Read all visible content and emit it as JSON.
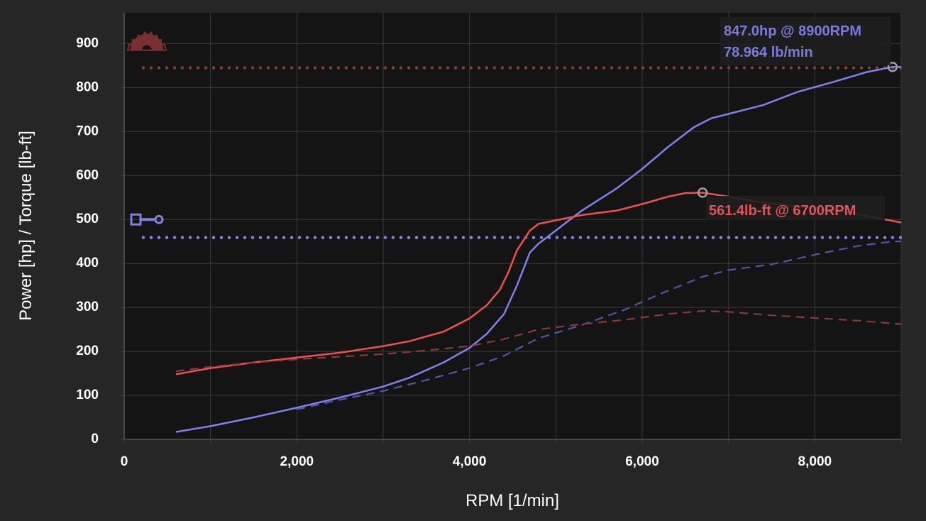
{
  "chart_data": {
    "type": "line",
    "xlabel": "RPM [1/min]",
    "ylabel": "Power [hp] / Torque [lb-ft]",
    "xlim": [
      0,
      9000
    ],
    "ylim": [
      0,
      970
    ],
    "x_ticks": [
      {
        "value": 0,
        "label": "0"
      },
      {
        "value": 2000,
        "label": "2,000"
      },
      {
        "value": 4000,
        "label": "4,000"
      },
      {
        "value": 6000,
        "label": "6,000"
      },
      {
        "value": 8000,
        "label": "8,000"
      }
    ],
    "y_ticks": [
      {
        "value": 0,
        "label": "0"
      },
      {
        "value": 100,
        "label": "100"
      },
      {
        "value": 200,
        "label": "200"
      },
      {
        "value": 300,
        "label": "300"
      },
      {
        "value": 400,
        "label": "400"
      },
      {
        "value": 500,
        "label": "500"
      },
      {
        "value": 600,
        "label": "600"
      },
      {
        "value": 700,
        "label": "700"
      },
      {
        "value": 800,
        "label": "800"
      },
      {
        "value": 900,
        "label": "900"
      }
    ],
    "grid": true,
    "colors": {
      "power": "#8080f0",
      "torque": "#f05050",
      "power_dim": "#5555a8",
      "torque_dim": "#8a3a3a",
      "power_label": "#7a7adf",
      "torque_label": "#e05555"
    },
    "series": [
      {
        "style": "solid",
        "color_key": "power",
        "points": [
          [
            600,
            17
          ],
          [
            1000,
            30
          ],
          [
            1500,
            50
          ],
          [
            2000,
            72
          ],
          [
            2500,
            95
          ],
          [
            3000,
            120
          ],
          [
            3300,
            140
          ],
          [
            3700,
            175
          ],
          [
            4000,
            208
          ],
          [
            4200,
            240
          ],
          [
            4400,
            285
          ],
          [
            4550,
            350
          ],
          [
            4700,
            425
          ],
          [
            4800,
            445
          ],
          [
            5000,
            475
          ],
          [
            5300,
            520
          ],
          [
            5700,
            570
          ],
          [
            6000,
            615
          ],
          [
            6300,
            665
          ],
          [
            6600,
            710
          ],
          [
            6800,
            730
          ],
          [
            7000,
            740
          ],
          [
            7400,
            760
          ],
          [
            7800,
            790
          ],
          [
            8200,
            812
          ],
          [
            8600,
            835
          ],
          [
            8900,
            847
          ],
          [
            9000,
            847
          ]
        ]
      },
      {
        "style": "solid",
        "color_key": "torque",
        "points": [
          [
            600,
            148
          ],
          [
            1000,
            162
          ],
          [
            1500,
            175
          ],
          [
            2000,
            186
          ],
          [
            2500,
            197
          ],
          [
            3000,
            212
          ],
          [
            3300,
            223
          ],
          [
            3700,
            245
          ],
          [
            4000,
            275
          ],
          [
            4200,
            305
          ],
          [
            4350,
            340
          ],
          [
            4450,
            380
          ],
          [
            4550,
            430
          ],
          [
            4700,
            475
          ],
          [
            4800,
            490
          ],
          [
            5000,
            498
          ],
          [
            5300,
            510
          ],
          [
            5700,
            520
          ],
          [
            6000,
            535
          ],
          [
            6300,
            552
          ],
          [
            6500,
            560
          ],
          [
            6700,
            561
          ],
          [
            7000,
            552
          ],
          [
            7400,
            538
          ],
          [
            7800,
            530
          ],
          [
            8200,
            522
          ],
          [
            8600,
            508
          ],
          [
            9000,
            493
          ]
        ]
      },
      {
        "style": "dashed",
        "color_key": "power_dim",
        "points": [
          [
            2000,
            68
          ],
          [
            2500,
            90
          ],
          [
            3000,
            110
          ],
          [
            3500,
            135
          ],
          [
            4000,
            162
          ],
          [
            4400,
            190
          ],
          [
            4800,
            230
          ],
          [
            5300,
            260
          ],
          [
            5800,
            295
          ],
          [
            6200,
            330
          ],
          [
            6700,
            370
          ],
          [
            7000,
            385
          ],
          [
            7500,
            398
          ],
          [
            8000,
            420
          ],
          [
            8500,
            440
          ],
          [
            8900,
            450
          ],
          [
            9000,
            450
          ]
        ]
      },
      {
        "style": "dashed",
        "color_key": "torque_dim",
        "points": [
          [
            600,
            155
          ],
          [
            1000,
            165
          ],
          [
            1500,
            175
          ],
          [
            2000,
            182
          ],
          [
            2500,
            188
          ],
          [
            3000,
            194
          ],
          [
            3500,
            202
          ],
          [
            4000,
            212
          ],
          [
            4400,
            228
          ],
          [
            4800,
            250
          ],
          [
            5300,
            262
          ],
          [
            5800,
            272
          ],
          [
            6300,
            285
          ],
          [
            6700,
            292
          ],
          [
            7000,
            290
          ],
          [
            7500,
            282
          ],
          [
            8000,
            276
          ],
          [
            8500,
            270
          ],
          [
            9000,
            262
          ]
        ]
      }
    ],
    "reference_lines": [
      {
        "y": 845,
        "color_key": "torque_dim"
      },
      {
        "y": 459,
        "color_key": "power"
      }
    ],
    "markers": [
      {
        "x": 8900,
        "y": 847
      },
      {
        "x": 6700,
        "y": 561
      }
    ],
    "annotations": {
      "power_peak": "847.0hp @ 8900RPM",
      "air_flow": "78.964 lb/min",
      "torque_peak": "561.4lb-ft @ 6700RPM"
    },
    "icons": [
      {
        "name": "turbo-icon",
        "y": 885
      },
      {
        "name": "piston-icon",
        "y": 500
      }
    ]
  }
}
